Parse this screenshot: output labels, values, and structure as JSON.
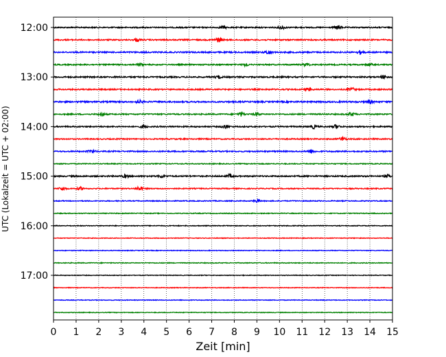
{
  "chart_data": {
    "type": "line",
    "title": "",
    "xlabel": "Zeit  [min]",
    "ylabel": "UTC (Lokalzeit = UTC + 02:00)",
    "xlim": [
      0,
      15
    ],
    "x_ticks": [
      "0",
      "1",
      "2",
      "3",
      "4",
      "5",
      "6",
      "7",
      "8",
      "9",
      "10",
      "11",
      "12",
      "13",
      "14",
      "15"
    ],
    "y_tick_labels": [
      "12:00",
      "13:00",
      "14:00",
      "15:00",
      "16:00",
      "17:00"
    ],
    "trace_colors": [
      "#000000",
      "#ff0000",
      "#0000ff",
      "#008000"
    ],
    "traces": [
      {
        "start": "12:00",
        "color": "#000000",
        "noise": 0.55,
        "events": [
          [
            7.5,
            1.0
          ],
          [
            10.1,
            1.4
          ],
          [
            12.6,
            1.6
          ]
        ]
      },
      {
        "start": "12:15",
        "color": "#ff0000",
        "noise": 0.55,
        "events": [
          [
            3.7,
            1.2
          ],
          [
            7.3,
            1.8
          ]
        ]
      },
      {
        "start": "12:30",
        "color": "#0000ff",
        "noise": 0.6,
        "events": [
          [
            9.5,
            1.5
          ],
          [
            13.6,
            1.6
          ]
        ]
      },
      {
        "start": "12:45",
        "color": "#008000",
        "noise": 0.55,
        "events": [
          [
            3.8,
            1.0
          ],
          [
            8.5,
            1.0
          ],
          [
            11.2,
            1.2
          ],
          [
            14.0,
            1.0
          ]
        ]
      },
      {
        "start": "13:00",
        "color": "#000000",
        "noise": 0.6,
        "events": [
          [
            7.3,
            1.2
          ],
          [
            14.6,
            1.4
          ]
        ]
      },
      {
        "start": "13:15",
        "color": "#ff0000",
        "noise": 0.55,
        "events": [
          [
            11.3,
            1.2
          ],
          [
            13.2,
            1.3
          ]
        ]
      },
      {
        "start": "13:30",
        "color": "#0000ff",
        "noise": 0.65,
        "events": [
          [
            3.8,
            1.1
          ],
          [
            14.0,
            1.2
          ]
        ]
      },
      {
        "start": "13:45",
        "color": "#008000",
        "noise": 0.55,
        "events": [
          [
            2.1,
            1.3
          ],
          [
            8.3,
            1.6
          ],
          [
            9.0,
            1.2
          ],
          [
            13.2,
            1.4
          ]
        ]
      },
      {
        "start": "14:00",
        "color": "#000000",
        "noise": 0.55,
        "events": [
          [
            4.0,
            1.2
          ],
          [
            7.6,
            1.4
          ],
          [
            11.5,
            1.5
          ],
          [
            12.5,
            1.5
          ]
        ]
      },
      {
        "start": "14:15",
        "color": "#ff0000",
        "noise": 0.5,
        "events": [
          [
            12.8,
            1.8
          ]
        ]
      },
      {
        "start": "14:30",
        "color": "#0000ff",
        "noise": 0.55,
        "events": [
          [
            1.7,
            1.2
          ],
          [
            11.4,
            1.6
          ]
        ]
      },
      {
        "start": "14:45",
        "color": "#008000",
        "noise": 0.4,
        "events": []
      },
      {
        "start": "15:00",
        "color": "#000000",
        "noise": 0.6,
        "events": [
          [
            3.2,
            1.3
          ],
          [
            4.8,
            1.2
          ],
          [
            7.8,
            1.3
          ],
          [
            14.8,
            1.2
          ]
        ]
      },
      {
        "start": "15:15",
        "color": "#ff0000",
        "noise": 0.45,
        "events": [
          [
            0.4,
            1.5
          ],
          [
            1.2,
            1.3
          ],
          [
            3.8,
            1.6
          ]
        ]
      },
      {
        "start": "15:30",
        "color": "#0000ff",
        "noise": 0.4,
        "events": [
          [
            9.0,
            1.4
          ]
        ]
      },
      {
        "start": "15:45",
        "color": "#008000",
        "noise": 0.35,
        "events": []
      },
      {
        "start": "16:00",
        "color": "#000000",
        "noise": 0.35,
        "events": []
      },
      {
        "start": "16:15",
        "color": "#ff0000",
        "noise": 0.3,
        "events": []
      },
      {
        "start": "16:30",
        "color": "#0000ff",
        "noise": 0.3,
        "events": []
      },
      {
        "start": "16:45",
        "color": "#008000",
        "noise": 0.35,
        "events": []
      },
      {
        "start": "17:00",
        "color": "#000000",
        "noise": 0.3,
        "events": []
      },
      {
        "start": "17:15",
        "color": "#ff0000",
        "noise": 0.3,
        "events": []
      },
      {
        "start": "17:30",
        "color": "#0000ff",
        "noise": 0.3,
        "events": []
      },
      {
        "start": "17:45",
        "color": "#008000",
        "noise": 0.3,
        "events": []
      }
    ],
    "grid": "vertical dotted",
    "legend": "none"
  }
}
